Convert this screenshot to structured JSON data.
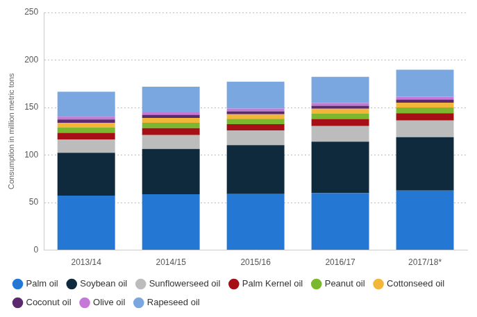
{
  "chart_data": {
    "type": "bar",
    "stacked": true,
    "grid": true,
    "legend": "bottom",
    "ylabel": "Consumption in million metric tons",
    "categories": [
      "2013/14",
      "2014/15",
      "2015/16",
      "2016/17",
      "2017/18*"
    ],
    "ylim": [
      0,
      250
    ],
    "yticks": [
      0,
      50,
      100,
      150,
      200,
      250
    ],
    "series": [
      {
        "name": "Palm oil",
        "color": "#2478d4",
        "values": [
          57.3,
          58.9,
          59.0,
          60.0,
          62.6
        ]
      },
      {
        "name": "Soybean oil",
        "color": "#0f2a3d",
        "values": [
          45.2,
          47.6,
          51.5,
          54.0,
          56.2
        ]
      },
      {
        "name": "Sunflowerseed oil",
        "color": "#bcbcbc",
        "values": [
          14.0,
          14.5,
          15.2,
          16.5,
          17.5
        ]
      },
      {
        "name": "Palm Kernel oil",
        "color": "#a50f15",
        "values": [
          6.9,
          7.4,
          6.9,
          7.5,
          7.8
        ]
      },
      {
        "name": "Peanut oil",
        "color": "#7cb82f",
        "values": [
          5.4,
          5.6,
          5.6,
          5.8,
          5.9
        ]
      },
      {
        "name": "Cottonseed oil",
        "color": "#f2b63a",
        "values": [
          5.1,
          5.0,
          4.7,
          4.9,
          5.1
        ]
      },
      {
        "name": "Coconut oil",
        "color": "#5b2a6e",
        "values": [
          3.6,
          3.4,
          3.2,
          3.2,
          3.4
        ]
      },
      {
        "name": "Olive oil",
        "color": "#c678d8",
        "values": [
          2.9,
          2.6,
          2.9,
          2.8,
          2.8
        ]
      },
      {
        "name": "Rapeseed oil",
        "color": "#7aa7e0",
        "values": [
          26.2,
          27.0,
          28.2,
          27.7,
          28.5
        ]
      }
    ]
  }
}
